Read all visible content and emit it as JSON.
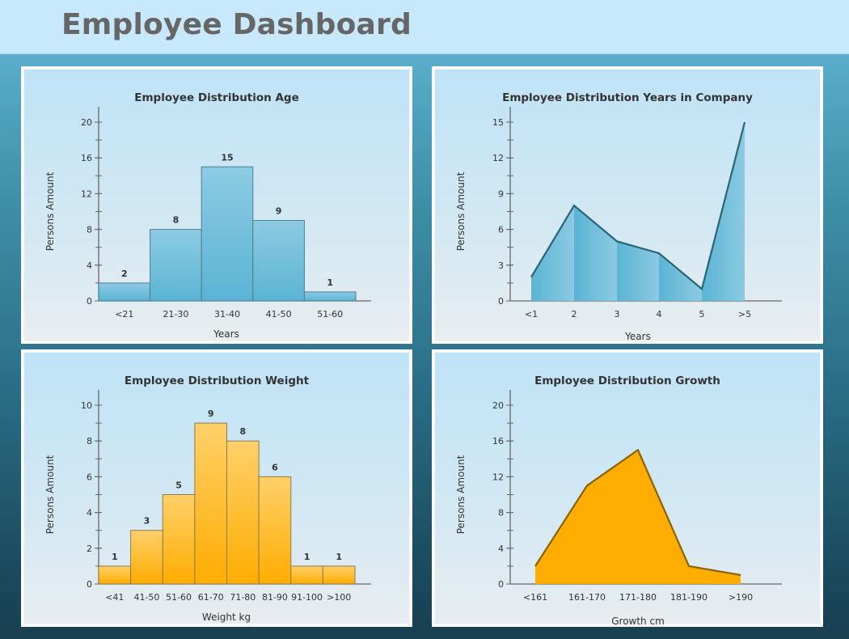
{
  "header": {
    "title": "Employee Dashboard"
  },
  "colors": {
    "blue_fill_top": "#8dcbe3",
    "blue_fill_bottom": "#5ab4d4",
    "blue_line": "#2a6478",
    "orange_fill_top": "#ffd06a",
    "orange_fill_bottom": "#ffad00",
    "orange_line": "#8a6200",
    "axis": "#666666"
  },
  "chart_data": [
    {
      "id": "age",
      "type": "bar",
      "title": "Employee Distribution Age",
      "xlabel": "Years",
      "ylabel": "Persons Amount",
      "categories": [
        "<21",
        "21-30",
        "31-40",
        "41-50",
        "51-60"
      ],
      "values": [
        2,
        8,
        15,
        9,
        1
      ],
      "data_labels": [
        "2",
        "8",
        "15",
        "9",
        "1"
      ],
      "ylim": [
        0,
        20
      ],
      "yticks": [
        0,
        4,
        8,
        12,
        16,
        20
      ],
      "yminor_step": 2,
      "grid": false,
      "color": "blue"
    },
    {
      "id": "years",
      "type": "area",
      "title": "Employee Distribution Years in Company",
      "xlabel": "Years",
      "ylabel": "Persons Amount",
      "categories": [
        "<1",
        "2",
        "3",
        "4",
        "5",
        ">5"
      ],
      "values": [
        2,
        8,
        5,
        4,
        1,
        15
      ],
      "ylim": [
        0,
        15
      ],
      "yticks": [
        0,
        3,
        6,
        9,
        12,
        15
      ],
      "yminor_step": 1.5,
      "grid": false,
      "color": "blue"
    },
    {
      "id": "weight",
      "type": "bar",
      "title": "Employee Distribution Weight",
      "xlabel": "Weight kg",
      "ylabel": "Persons Amount",
      "categories": [
        "<41",
        "41-50",
        "51-60",
        "61-70",
        "71-80",
        "81-90",
        "91-100",
        ">100"
      ],
      "values": [
        1,
        3,
        5,
        9,
        8,
        6,
        1,
        1
      ],
      "data_labels": [
        "1",
        "3",
        "5",
        "9",
        "8",
        "6",
        "1",
        "1"
      ],
      "ylim": [
        0,
        10
      ],
      "yticks": [
        0,
        2,
        4,
        6,
        8,
        10
      ],
      "yminor_step": 1,
      "grid": false,
      "color": "orange"
    },
    {
      "id": "growth",
      "type": "area",
      "title": "Employee Distribution Growth",
      "xlabel": "Growth cm",
      "ylabel": "Persons Amount",
      "categories": [
        "<161",
        "161-170",
        "171-180",
        "181-190",
        ">190"
      ],
      "values": [
        2,
        11,
        15,
        2,
        1
      ],
      "ylim": [
        0,
        20
      ],
      "yticks": [
        0,
        4,
        8,
        12,
        16,
        20
      ],
      "yminor_step": 2,
      "grid": false,
      "color": "orange"
    }
  ]
}
